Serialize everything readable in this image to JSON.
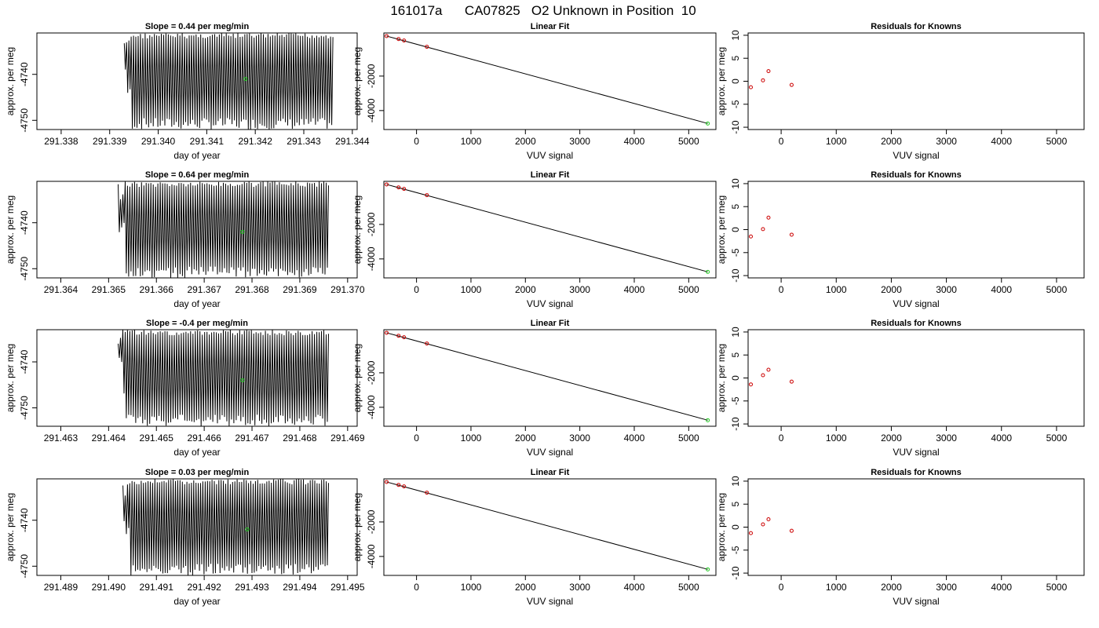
{
  "page": {
    "title": "161017a      CA07825   O2 Unknown in Position  10"
  },
  "colors": {
    "trace": "#000000",
    "fit_line": "#000000",
    "known": "#cc0000",
    "unknown": "#22cc22",
    "frame": "#000000"
  },
  "chart_data": [
    {
      "type": "line",
      "panel": "trace",
      "title": "Slope =  0.44  per meg/min",
      "xlabel": "day of year",
      "ylabel": "approx. per meg",
      "xlim": [
        291.3375,
        291.3441
      ],
      "ylim": [
        -4752,
        -4731
      ],
      "xticks": [
        "291.338",
        "291.339",
        "291.340",
        "291.341",
        "291.342",
        "291.343",
        "291.344"
      ],
      "yticks": [
        "-4740",
        "-4750"
      ],
      "ytick_values": [
        -4740,
        -4750
      ],
      "trace_x_range": [
        291.3393,
        291.3436
      ],
      "trace_y_range": [
        -4752,
        -4731
      ],
      "trace_cycles": 90,
      "unknown_point": {
        "x": 291.3418,
        "y": -4741
      }
    },
    {
      "type": "scatter",
      "panel": "fit",
      "title": "Linear Fit",
      "xlabel": "VUV signal",
      "ylabel": "approx. per meg",
      "xlim": [
        -600,
        5500
      ],
      "ylim": [
        -5100,
        500
      ],
      "xticks": [
        "0",
        "1000",
        "2000",
        "3000",
        "4000",
        "5000"
      ],
      "xtick_values": [
        0,
        1000,
        2000,
        3000,
        4000,
        5000
      ],
      "yticks": [
        "-2000",
        "-4000"
      ],
      "ytick_values": [
        -2000,
        -4000
      ],
      "line": {
        "x": [
          -550,
          5350
        ],
        "y": [
          320,
          -4750
        ]
      },
      "knowns": {
        "x": [
          -550,
          -330,
          -230,
          190
        ],
        "y": [
          320,
          150,
          60,
          -300
        ]
      },
      "unknown_point": {
        "x": 5350,
        "y": -4750
      }
    },
    {
      "type": "scatter",
      "panel": "residuals",
      "title": "Residuals for Knowns",
      "xlabel": "VUV signal",
      "ylabel": "approx. per meg",
      "xlim": [
        -600,
        5500
      ],
      "ylim": [
        -10.5,
        10.5
      ],
      "xticks": [
        "0",
        "1000",
        "2000",
        "3000",
        "4000",
        "5000"
      ],
      "xtick_values": [
        0,
        1000,
        2000,
        3000,
        4000,
        5000
      ],
      "yticks": [
        "10",
        "5",
        "0",
        "-5",
        "-10"
      ],
      "ytick_values": [
        10,
        5,
        0,
        -5,
        -10
      ],
      "residuals": {
        "x": [
          -550,
          -330,
          -230,
          190
        ],
        "y": [
          -1.3,
          0.2,
          2.2,
          -0.8
        ]
      }
    },
    {
      "type": "line",
      "panel": "trace",
      "title": "Slope =  0.64  per meg/min",
      "xlabel": "day of year",
      "ylabel": "approx. per meg",
      "xlim": [
        291.3635,
        291.3702
      ],
      "ylim": [
        -4752,
        -4731
      ],
      "xticks": [
        "291.364",
        "291.365",
        "291.366",
        "291.367",
        "291.368",
        "291.369",
        "291.370"
      ],
      "yticks": [
        "-4740",
        "-4750"
      ],
      "ytick_values": [
        -4740,
        -4750
      ],
      "trace_x_range": [
        291.3652,
        291.3696
      ],
      "trace_y_range": [
        -4752,
        -4731
      ],
      "trace_cycles": 90,
      "unknown_point": {
        "x": 291.3678,
        "y": -4742
      }
    },
    {
      "type": "scatter",
      "panel": "fit",
      "title": "Linear Fit",
      "xlabel": "VUV signal",
      "ylabel": "approx. per meg",
      "xlim": [
        -600,
        5500
      ],
      "ylim": [
        -5100,
        500
      ],
      "xticks": [
        "0",
        "1000",
        "2000",
        "3000",
        "4000",
        "5000"
      ],
      "xtick_values": [
        0,
        1000,
        2000,
        3000,
        4000,
        5000
      ],
      "yticks": [
        "-2000",
        "-4000"
      ],
      "ytick_values": [
        -2000,
        -4000
      ],
      "line": {
        "x": [
          -550,
          5350
        ],
        "y": [
          320,
          -4750
        ]
      },
      "knowns": {
        "x": [
          -550,
          -330,
          -230,
          190
        ],
        "y": [
          320,
          150,
          60,
          -300
        ]
      },
      "unknown_point": {
        "x": 5350,
        "y": -4750
      }
    },
    {
      "type": "scatter",
      "panel": "residuals",
      "title": "Residuals for Knowns",
      "xlabel": "VUV signal",
      "ylabel": "approx. per meg",
      "xlim": [
        -600,
        5500
      ],
      "ylim": [
        -10.5,
        10.5
      ],
      "xticks": [
        "0",
        "1000",
        "2000",
        "3000",
        "4000",
        "5000"
      ],
      "xtick_values": [
        0,
        1000,
        2000,
        3000,
        4000,
        5000
      ],
      "yticks": [
        "10",
        "5",
        "0",
        "-5",
        "-10"
      ],
      "ytick_values": [
        10,
        5,
        0,
        -5,
        -10
      ],
      "residuals": {
        "x": [
          -550,
          -330,
          -230,
          190
        ],
        "y": [
          -1.5,
          0.1,
          2.6,
          -1.1
        ]
      }
    },
    {
      "type": "line",
      "panel": "trace",
      "title": "Slope =  -0.4  per meg/min",
      "xlabel": "day of year",
      "ylabel": "approx. per meg",
      "xlim": [
        291.4625,
        291.4692
      ],
      "ylim": [
        -4754,
        -4733
      ],
      "xticks": [
        "291.463",
        "291.464",
        "291.465",
        "291.466",
        "291.467",
        "291.468",
        "291.469"
      ],
      "yticks": [
        "-4740",
        "-4750"
      ],
      "ytick_values": [
        -4740,
        -4750
      ],
      "trace_x_range": [
        291.4642,
        291.4686
      ],
      "trace_y_range": [
        -4754,
        -4733
      ],
      "trace_cycles": 90,
      "unknown_point": {
        "x": 291.4668,
        "y": -4744
      }
    },
    {
      "type": "scatter",
      "panel": "fit",
      "title": "Linear Fit",
      "xlabel": "VUV signal",
      "ylabel": "approx. per meg",
      "xlim": [
        -600,
        5500
      ],
      "ylim": [
        -5100,
        500
      ],
      "xticks": [
        "0",
        "1000",
        "2000",
        "3000",
        "4000",
        "5000"
      ],
      "xtick_values": [
        0,
        1000,
        2000,
        3000,
        4000,
        5000
      ],
      "yticks": [
        "-2000",
        "-4000"
      ],
      "ytick_values": [
        -2000,
        -4000
      ],
      "line": {
        "x": [
          -550,
          5350
        ],
        "y": [
          320,
          -4750
        ]
      },
      "knowns": {
        "x": [
          -550,
          -330,
          -230,
          190
        ],
        "y": [
          320,
          150,
          60,
          -300
        ]
      },
      "unknown_point": {
        "x": 5350,
        "y": -4750
      }
    },
    {
      "type": "scatter",
      "panel": "residuals",
      "title": "Residuals for Knowns",
      "xlabel": "VUV signal",
      "ylabel": "approx. per meg",
      "xlim": [
        -600,
        5500
      ],
      "ylim": [
        -10.5,
        10.5
      ],
      "xticks": [
        "0",
        "1000",
        "2000",
        "3000",
        "4000",
        "5000"
      ],
      "xtick_values": [
        0,
        1000,
        2000,
        3000,
        4000,
        5000
      ],
      "yticks": [
        "10",
        "5",
        "0",
        "-5",
        "-10"
      ],
      "ytick_values": [
        10,
        5,
        0,
        -5,
        -10
      ],
      "residuals": {
        "x": [
          -550,
          -330,
          -230,
          190
        ],
        "y": [
          -1.4,
          0.6,
          1.8,
          -0.8
        ]
      }
    },
    {
      "type": "line",
      "panel": "trace",
      "title": "Slope =  0.03  per meg/min",
      "xlabel": "day of year",
      "ylabel": "approx. per meg",
      "xlim": [
        291.4885,
        291.4952
      ],
      "ylim": [
        -4752,
        -4731
      ],
      "xticks": [
        "291.489",
        "291.490",
        "291.491",
        "291.492",
        "291.493",
        "291.494",
        "291.495"
      ],
      "yticks": [
        "-4740",
        "-4750"
      ],
      "ytick_values": [
        -4740,
        -4750
      ],
      "trace_x_range": [
        291.4903,
        291.4946
      ],
      "trace_y_range": [
        -4752,
        -4731
      ],
      "trace_cycles": 90,
      "unknown_point": {
        "x": 291.4929,
        "y": -4742
      }
    },
    {
      "type": "scatter",
      "panel": "fit",
      "title": "Linear Fit",
      "xlabel": "VUV signal",
      "ylabel": "approx. per meg",
      "xlim": [
        -600,
        5500
      ],
      "ylim": [
        -5100,
        500
      ],
      "xticks": [
        "0",
        "1000",
        "2000",
        "3000",
        "4000",
        "5000"
      ],
      "xtick_values": [
        0,
        1000,
        2000,
        3000,
        4000,
        5000
      ],
      "yticks": [
        "-2000",
        "-4000"
      ],
      "ytick_values": [
        -2000,
        -4000
      ],
      "line": {
        "x": [
          -550,
          5350
        ],
        "y": [
          320,
          -4750
        ]
      },
      "knowns": {
        "x": [
          -550,
          -330,
          -230,
          190
        ],
        "y": [
          320,
          150,
          60,
          -300
        ]
      },
      "unknown_point": {
        "x": 5350,
        "y": -4750
      }
    },
    {
      "type": "scatter",
      "panel": "residuals",
      "title": "Residuals for Knowns",
      "xlabel": "VUV signal",
      "ylabel": "approx. per meg",
      "xlim": [
        -600,
        5500
      ],
      "ylim": [
        -10.5,
        10.5
      ],
      "xticks": [
        "0",
        "1000",
        "2000",
        "3000",
        "4000",
        "5000"
      ],
      "xtick_values": [
        0,
        1000,
        2000,
        3000,
        4000,
        5000
      ],
      "yticks": [
        "10",
        "5",
        "0",
        "-5",
        "-10"
      ],
      "ytick_values": [
        10,
        5,
        0,
        -5,
        -10
      ],
      "residuals": {
        "x": [
          -550,
          -330,
          -230,
          190
        ],
        "y": [
          -1.3,
          0.6,
          1.7,
          -0.8
        ]
      }
    }
  ]
}
